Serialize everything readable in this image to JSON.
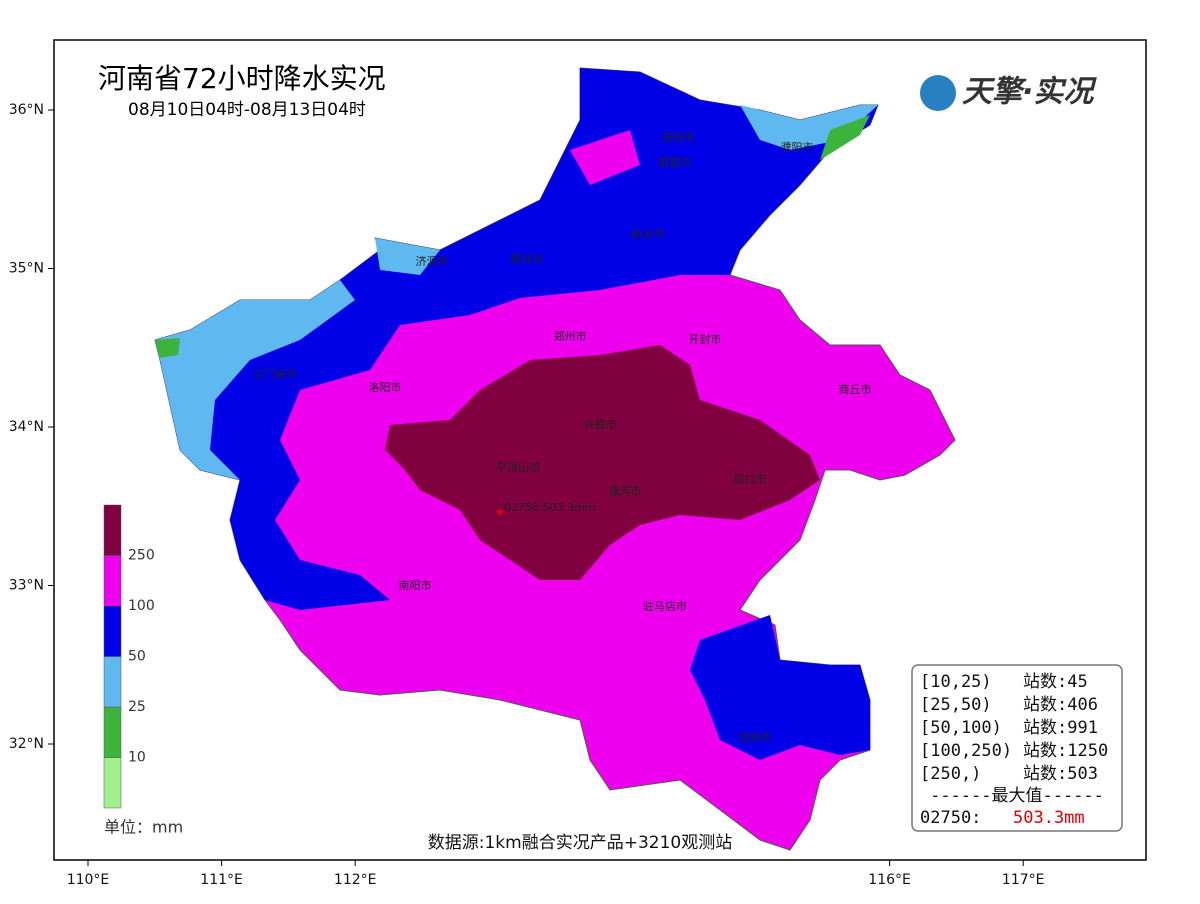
{
  "header": {
    "title": "河南省72小时降水实况",
    "subtitle": "08月10日04时-08月13日04时",
    "logo": "天擎·实况"
  },
  "map": {
    "lat_ticks": [
      {
        "value": 36,
        "label": "36°N"
      },
      {
        "value": 35,
        "label": "35°N"
      },
      {
        "value": 34,
        "label": "34°N"
      },
      {
        "value": 33,
        "label": "33°N"
      },
      {
        "value": 32,
        "label": "32°N"
      }
    ],
    "lon_ticks": [
      {
        "value": 110,
        "label": "110°E"
      },
      {
        "value": 111,
        "label": "111°E"
      },
      {
        "value": 112,
        "label": "112°E"
      },
      {
        "value": 116,
        "label": "116°E"
      },
      {
        "value": 117,
        "label": "117°E"
      }
    ],
    "cities": [
      "安阳市",
      "鹤壁市",
      "濮阳市",
      "新乡市",
      "焦作市",
      "济源市",
      "郑州市",
      "开封市",
      "三门峡市",
      "洛阳市",
      "商丘市",
      "许昌市",
      "平顶山市",
      "漯河市",
      "周口市",
      "南阳市",
      "驻马店市",
      "信阳市"
    ],
    "max_station": "02750:503.3mm"
  },
  "legend": {
    "levels": [
      10,
      25,
      50,
      100,
      250
    ],
    "colors": [
      "#a0f08c",
      "#3cb43c",
      "#60b8f0",
      "#0000e6",
      "#ee00ee",
      "#800040"
    ],
    "unit": "单位：mm"
  },
  "stats": {
    "rows": [
      {
        "range": "[10,25)",
        "count": "站数:45"
      },
      {
        "range": "[25,50)",
        "count": "站数:406"
      },
      {
        "range": "[50,100)",
        "count": "站数:991"
      },
      {
        "range": "[100,250)",
        "count": "站数:1250"
      },
      {
        "range": "[250,)",
        "count": "站数:503"
      }
    ],
    "max_title": "------最大值------",
    "max_station": "02750:",
    "max_value": "503.3mm"
  },
  "source": "数据源:1km融合实况产品+3210观测站"
}
